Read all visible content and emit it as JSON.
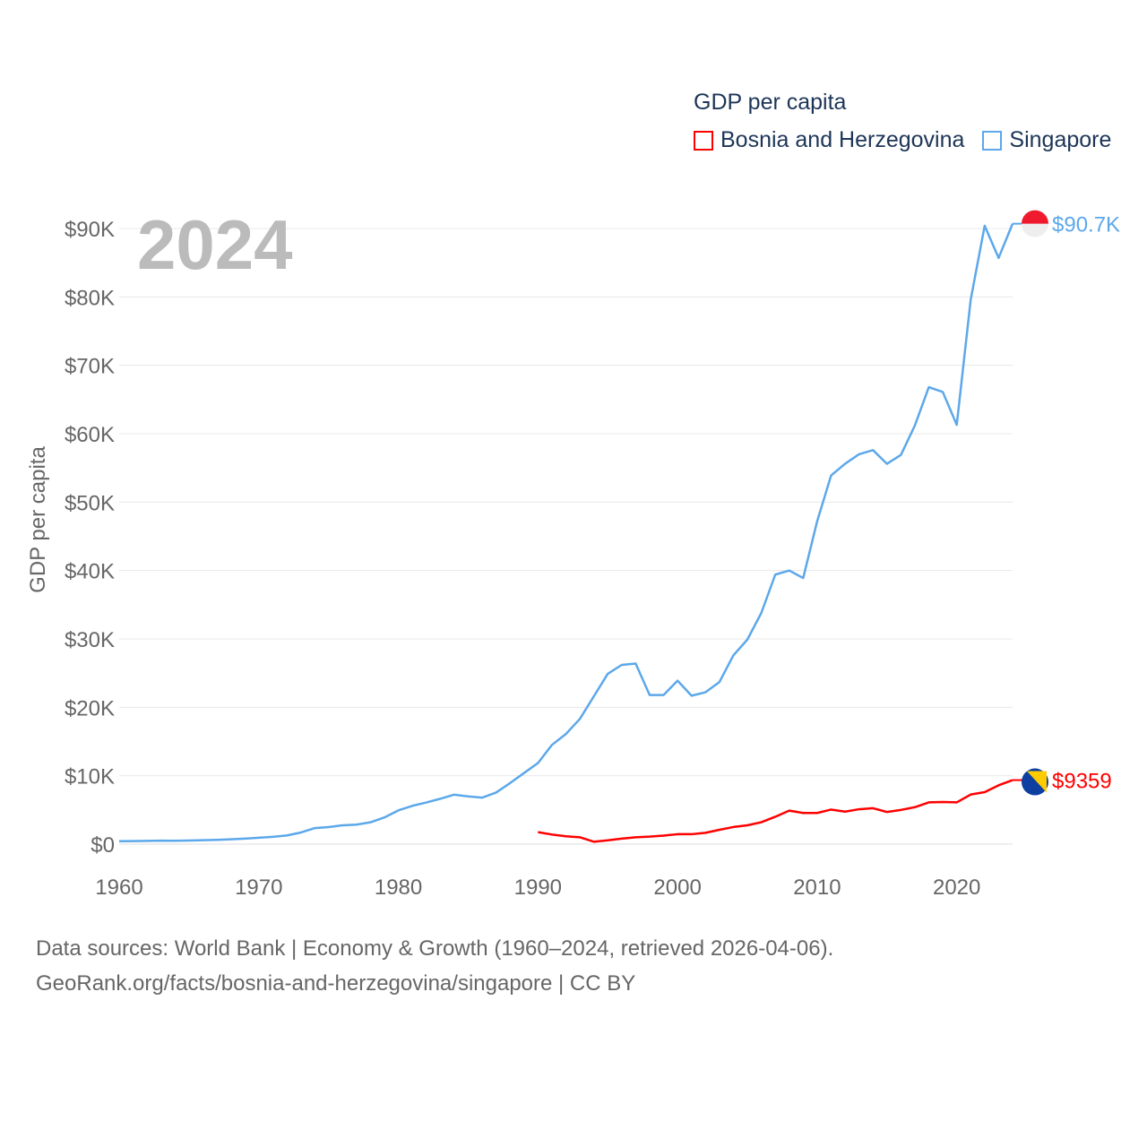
{
  "chart_data": {
    "type": "line",
    "title": "GDP per capita",
    "ylabel": "GDP per capita",
    "xlabel": "",
    "year_label": "2024",
    "xlim": [
      1960,
      2024
    ],
    "ylim": [
      0,
      90000
    ],
    "x_ticks": [
      "1960",
      "1970",
      "1980",
      "1990",
      "2000",
      "2010",
      "2020"
    ],
    "y_ticks": [
      "$0",
      "$10K",
      "$20K",
      "$30K",
      "$40K",
      "$50K",
      "$60K",
      "$70K",
      "$80K",
      "$90K"
    ],
    "grid": true,
    "legend_position": "top-right",
    "series": [
      {
        "name": "Bosnia and Herzegovina",
        "color": "#ff0000",
        "end_label": "$9359",
        "start_year": 1990,
        "values": [
          1750,
          1400,
          1150,
          1000,
          350,
          550,
          800,
          1000,
          1100,
          1250,
          1450,
          1450,
          1650,
          2100,
          2500,
          2750,
          3200,
          4000,
          4900,
          4550,
          4550,
          5050,
          4750,
          5100,
          5250,
          4700,
          5000,
          5400,
          6100,
          6150,
          6100,
          7250,
          7600,
          8600,
          9359
        ]
      },
      {
        "name": "Singapore",
        "color": "#5ca8ea",
        "end_label": "$90.7K",
        "start_year": 1960,
        "values": [
          430,
          450,
          470,
          510,
          490,
          520,
          570,
          620,
          710,
          810,
          930,
          1070,
          1260,
          1690,
          2340,
          2490,
          2750,
          2850,
          3190,
          3900,
          4930,
          5600,
          6080,
          6630,
          7230,
          6970,
          6790,
          7540,
          8920,
          10390,
          11860,
          14500,
          16100,
          18300,
          21600,
          24900,
          26200,
          26400,
          21800,
          21800,
          23900,
          21700,
          22200,
          23700,
          27600,
          29900,
          33800,
          39400,
          40000,
          38900,
          47200,
          53900,
          55600,
          57000,
          57600,
          55600,
          56900,
          61200,
          66800,
          66100,
          61300,
          79600,
          90400,
          85700,
          90700
        ]
      }
    ]
  },
  "footer": {
    "line1": "Data sources: World Bank | Economy & Growth (1960–2024, retrieved 2026-04-06).",
    "line2": "GeoRank.org/facts/bosnia-and-herzegovina/singapore | CC BY"
  }
}
